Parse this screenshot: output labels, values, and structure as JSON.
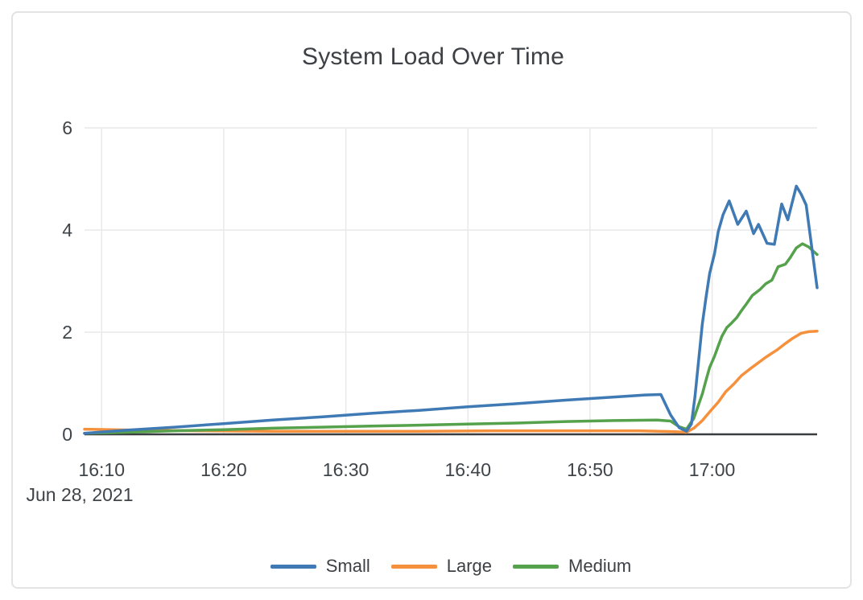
{
  "chart_data": {
    "type": "line",
    "title": "System Load Over Time",
    "xlabel": "",
    "ylabel": "",
    "grid": true,
    "legend_position": "bottom-center",
    "x_axis": {
      "unit": "time of day, minutes after 16:00",
      "range": [
        8.6,
        68.6
      ],
      "tick_values": [
        10,
        20,
        30,
        40,
        50,
        60
      ],
      "tick_labels": [
        "16:10",
        "16:20",
        "16:30",
        "16:40",
        "16:50",
        "17:00"
      ],
      "date_label": "Jun 28, 2021"
    },
    "y_axis": {
      "range": [
        0,
        6
      ],
      "tick_values": [
        0,
        2,
        4,
        6
      ],
      "tick_labels": [
        "0",
        "2",
        "4",
        "6"
      ]
    },
    "colors": {
      "grid": "#e9e9e9",
      "zero_line": "#3a3d40",
      "tick_text": "#3f4449",
      "title_text": "#3d4045"
    },
    "series": [
      {
        "name": "Small",
        "color": "#3f7ab5",
        "points": [
          [
            8.6,
            0.02
          ],
          [
            12,
            0.08
          ],
          [
            16,
            0.14
          ],
          [
            20,
            0.21
          ],
          [
            24,
            0.28
          ],
          [
            28,
            0.34
          ],
          [
            32,
            0.41
          ],
          [
            36,
            0.47
          ],
          [
            40,
            0.54
          ],
          [
            44,
            0.6
          ],
          [
            48,
            0.67
          ],
          [
            52,
            0.73
          ],
          [
            54.5,
            0.77
          ],
          [
            55.8,
            0.78
          ],
          [
            56.6,
            0.38
          ],
          [
            57.3,
            0.13
          ],
          [
            57.9,
            0.06
          ],
          [
            58.3,
            0.2
          ],
          [
            58.6,
            0.74
          ],
          [
            58.9,
            1.46
          ],
          [
            59.2,
            2.16
          ],
          [
            59.5,
            2.68
          ],
          [
            59.8,
            3.15
          ],
          [
            60.2,
            3.54
          ],
          [
            60.5,
            3.97
          ],
          [
            60.9,
            4.3
          ],
          [
            61.4,
            4.57
          ],
          [
            62.1,
            4.11
          ],
          [
            62.8,
            4.37
          ],
          [
            63.4,
            3.93
          ],
          [
            63.8,
            4.11
          ],
          [
            64.5,
            3.74
          ],
          [
            65.1,
            3.72
          ],
          [
            65.7,
            4.51
          ],
          [
            66.2,
            4.2
          ],
          [
            66.9,
            4.86
          ],
          [
            67.3,
            4.7
          ],
          [
            67.7,
            4.49
          ],
          [
            68.6,
            2.87
          ]
        ]
      },
      {
        "name": "Large",
        "color": "#f5913c",
        "points": [
          [
            8.6,
            0.1
          ],
          [
            13,
            0.08
          ],
          [
            18,
            0.07
          ],
          [
            24,
            0.06
          ],
          [
            30,
            0.06
          ],
          [
            36,
            0.06
          ],
          [
            42,
            0.07
          ],
          [
            48,
            0.07
          ],
          [
            54,
            0.07
          ],
          [
            57,
            0.05
          ],
          [
            57.9,
            0.04
          ],
          [
            58.5,
            0.12
          ],
          [
            59.2,
            0.27
          ],
          [
            59.8,
            0.44
          ],
          [
            60.5,
            0.63
          ],
          [
            61.1,
            0.83
          ],
          [
            61.8,
            0.99
          ],
          [
            62.4,
            1.15
          ],
          [
            63.1,
            1.28
          ],
          [
            64.4,
            1.51
          ],
          [
            65.3,
            1.65
          ],
          [
            65.9,
            1.76
          ],
          [
            66.6,
            1.88
          ],
          [
            67.3,
            1.98
          ],
          [
            67.9,
            2.01
          ],
          [
            68.6,
            2.02
          ]
        ]
      },
      {
        "name": "Medium",
        "color": "#55a14c",
        "points": [
          [
            8.6,
            0.02
          ],
          [
            12,
            0.04
          ],
          [
            16,
            0.07
          ],
          [
            20,
            0.09
          ],
          [
            24,
            0.12
          ],
          [
            28,
            0.14
          ],
          [
            32,
            0.16
          ],
          [
            36,
            0.18
          ],
          [
            40,
            0.2
          ],
          [
            44,
            0.22
          ],
          [
            48,
            0.25
          ],
          [
            52,
            0.27
          ],
          [
            55.5,
            0.28
          ],
          [
            56.6,
            0.26
          ],
          [
            57.3,
            0.15
          ],
          [
            57.9,
            0.1
          ],
          [
            58.5,
            0.31
          ],
          [
            58.8,
            0.52
          ],
          [
            59.2,
            0.79
          ],
          [
            59.5,
            1.06
          ],
          [
            59.8,
            1.31
          ],
          [
            60.2,
            1.53
          ],
          [
            60.5,
            1.73
          ],
          [
            60.8,
            1.92
          ],
          [
            61.2,
            2.09
          ],
          [
            61.6,
            2.18
          ],
          [
            62.0,
            2.28
          ],
          [
            62.4,
            2.42
          ],
          [
            62.8,
            2.55
          ],
          [
            63.3,
            2.72
          ],
          [
            63.9,
            2.83
          ],
          [
            64.4,
            2.95
          ],
          [
            64.9,
            3.02
          ],
          [
            65.4,
            3.28
          ],
          [
            66.0,
            3.33
          ],
          [
            66.4,
            3.46
          ],
          [
            66.9,
            3.65
          ],
          [
            67.4,
            3.73
          ],
          [
            67.9,
            3.67
          ],
          [
            68.6,
            3.52
          ]
        ]
      }
    ]
  }
}
